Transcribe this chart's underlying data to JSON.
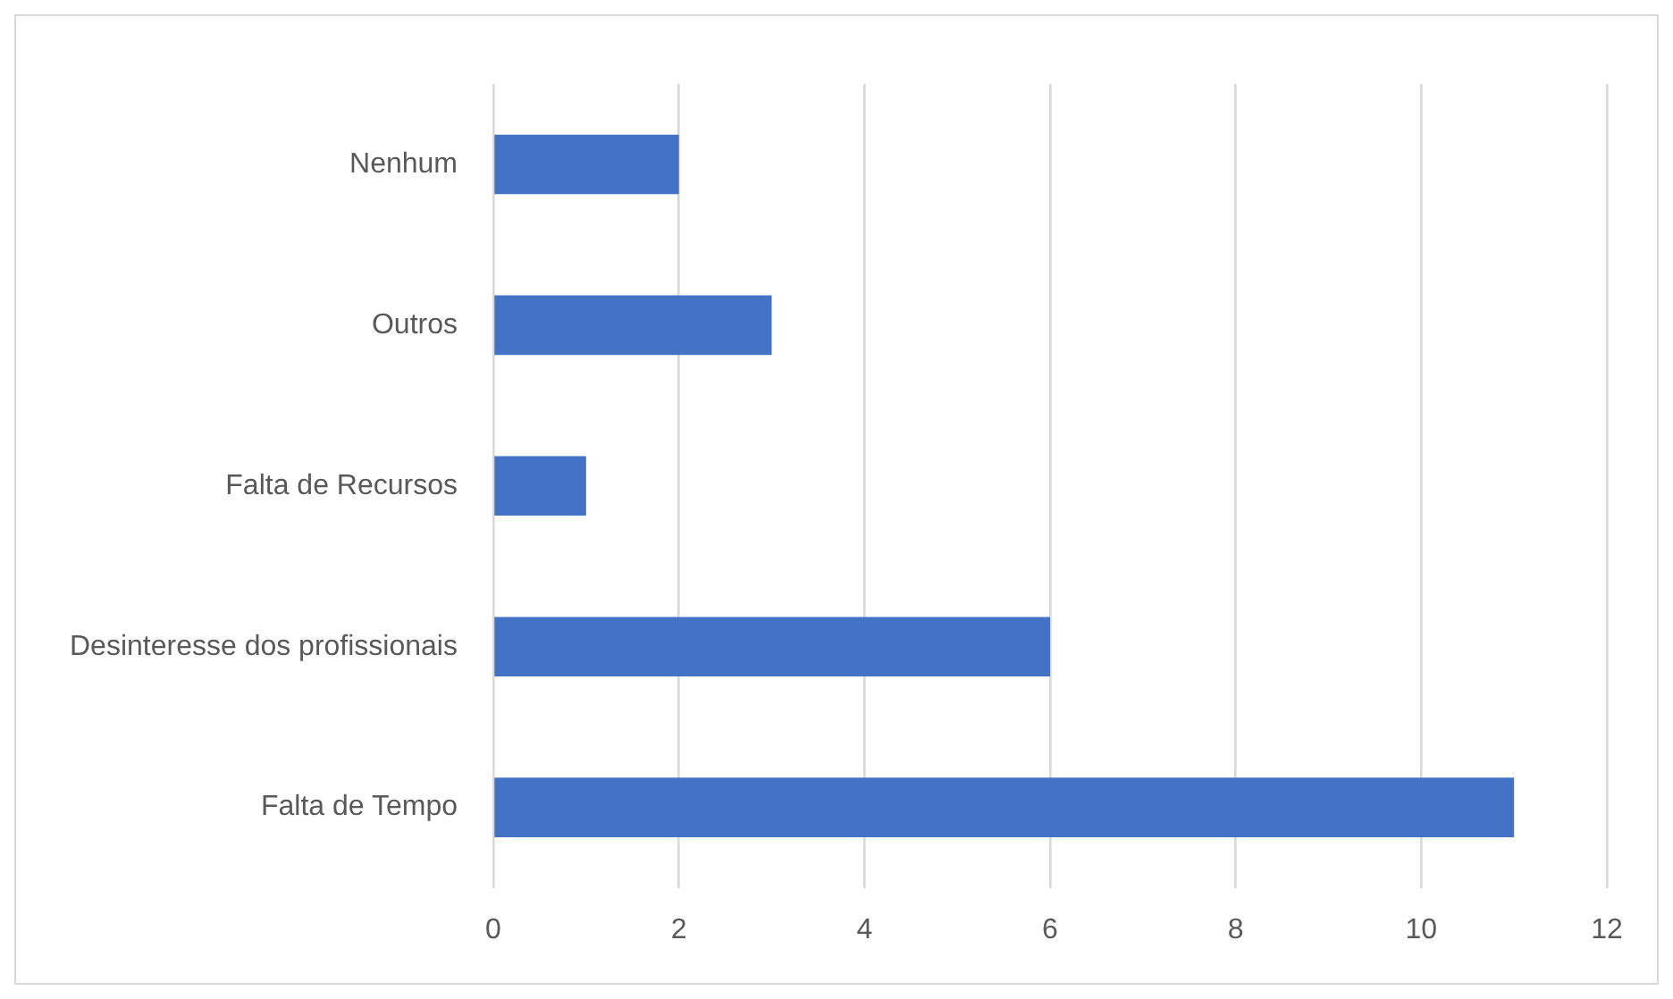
{
  "chart_data": {
    "type": "bar",
    "orientation": "horizontal",
    "categories": [
      "Nenhum",
      "Outros",
      "Falta de Recursos",
      "Desinteresse dos profissionais",
      "Falta de Tempo"
    ],
    "values": [
      2,
      3,
      1,
      6,
      11
    ],
    "color": "#4472c4",
    "xlim": [
      0,
      12
    ],
    "xticks": [
      0,
      2,
      4,
      6,
      8,
      10,
      12
    ],
    "grid": "x",
    "legend": false
  }
}
